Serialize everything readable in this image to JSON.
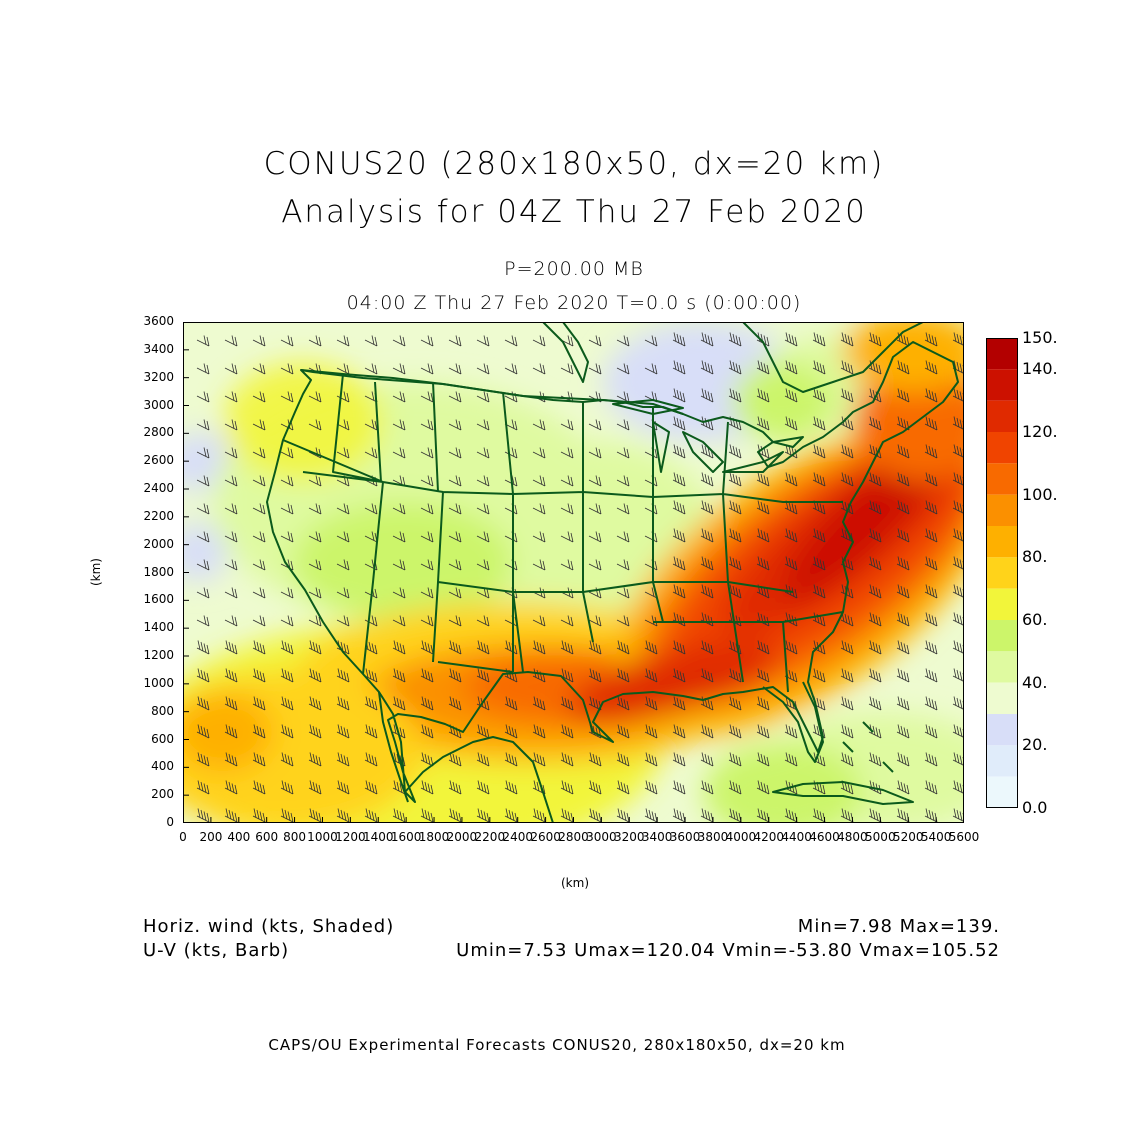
{
  "title_line1": "CONUS20 (280x180x50, dx=20 km)",
  "title_line2": "Analysis for 04Z Thu 27 Feb 2020",
  "level": "P=200.00 MB",
  "valid_time": "04:00 Z Thu 27 Feb 2020    T=0.0 s (0:00:00)",
  "axes": {
    "x_label": "(km)",
    "y_label": "(km)",
    "x_ticks": [
      "0",
      "200",
      "400",
      "600",
      "800",
      "1000",
      "1200",
      "1400",
      "1600",
      "1800",
      "2000",
      "2200",
      "2400",
      "2600",
      "2800",
      "3000",
      "3200",
      "3400",
      "3600",
      "3800",
      "4000",
      "4200",
      "4400",
      "4600",
      "4800",
      "5000",
      "5200",
      "5400",
      "5600"
    ],
    "y_ticks": [
      "0",
      "200",
      "400",
      "600",
      "800",
      "1000",
      "1200",
      "1400",
      "1600",
      "1800",
      "2000",
      "2200",
      "2400",
      "2600",
      "2800",
      "3000",
      "3200",
      "3400",
      "3600"
    ],
    "x_range": [
      0,
      5600
    ],
    "y_range": [
      0,
      3600
    ]
  },
  "colorbar": {
    "labels": [
      "150.",
      "140.",
      "120.",
      "100.",
      "80.",
      "60.",
      "40.",
      "20.",
      "0.0"
    ],
    "bins": [
      {
        "from": 140,
        "to": 150,
        "color": "#b30000"
      },
      {
        "from": 130,
        "to": 140,
        "color": "#cc1100"
      },
      {
        "from": 120,
        "to": 130,
        "color": "#e02a00"
      },
      {
        "from": 110,
        "to": 120,
        "color": "#f04400"
      },
      {
        "from": 100,
        "to": 110,
        "color": "#f86a00"
      },
      {
        "from": 90,
        "to": 100,
        "color": "#fb9000"
      },
      {
        "from": 80,
        "to": 90,
        "color": "#feb000"
      },
      {
        "from": 70,
        "to": 80,
        "color": "#ffd31a"
      },
      {
        "from": 60,
        "to": 70,
        "color": "#f2f53a"
      },
      {
        "from": 50,
        "to": 60,
        "color": "#ccf56a"
      },
      {
        "from": 40,
        "to": 50,
        "color": "#dffaa0"
      },
      {
        "from": 30,
        "to": 40,
        "color": "#eefbd0"
      },
      {
        "from": 20,
        "to": 30,
        "color": "#d8def8"
      },
      {
        "from": 10,
        "to": 20,
        "color": "#e0ecfa"
      },
      {
        "from": 0,
        "to": 10,
        "color": "#ecf8fc"
      }
    ]
  },
  "legend": {
    "shaded": "Horiz. wind (kts, Shaded)",
    "barb": "U-V (kts, Barb)",
    "minmax": "Min=7.98  Max=139.",
    "uv_stats": "Umin=7.53 Umax=120.04 Vmin=-53.80 Vmax=105.52"
  },
  "footer": "CAPS/OU Experimental Forecasts   CONUS20, 280x180x50, dx=20 km",
  "colors": {
    "boundary": "#0b5a1c",
    "barb": "#333333"
  }
}
